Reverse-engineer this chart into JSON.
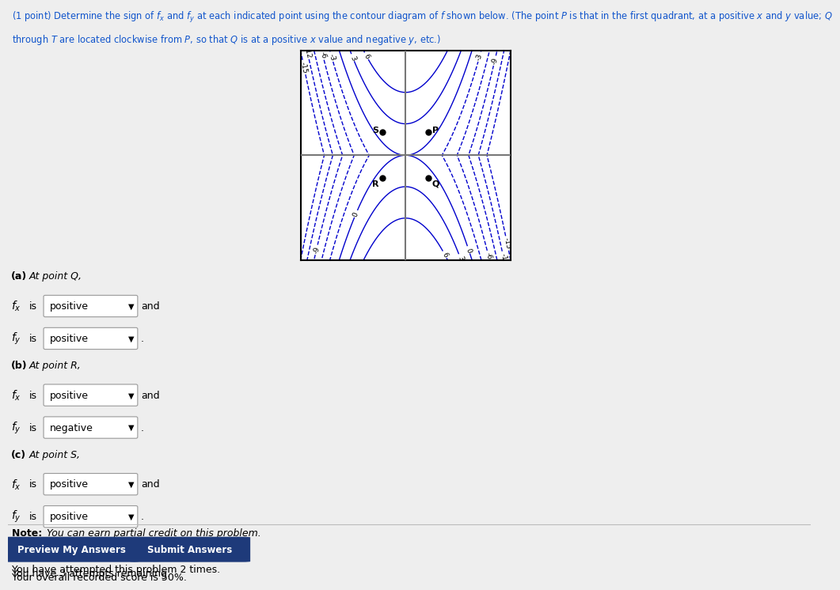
{
  "contour_levels": [
    -15,
    -12,
    -9,
    -6,
    -3,
    0,
    3,
    6
  ],
  "contour_color": "#0000cc",
  "page_bg": "#eeeeee",
  "plot_bg": "#ffffff",
  "points_coords": {
    "P": [
      0.55,
      0.55
    ],
    "Q": [
      0.55,
      -0.55
    ],
    "R": [
      -0.55,
      -0.55
    ],
    "S": [
      -0.55,
      0.55
    ]
  },
  "note_text": "Note: You can earn partial credit on this problem.",
  "note_italic": "You can earn partial credit on this problem.",
  "button1": "Preview My Answers",
  "button2": "Submit Answers",
  "attempt_text1": "You have attempted this problem 2 times.",
  "attempt_text2": "Your overall recorded score is 50%.",
  "attempt_text3": "You have 3 attempts remaining.",
  "header_line1": "(1 point) Determine the sign of f_x and f_y at each indicated point using the contour diagram of f shown below. (The point P is that in the first quadrant, at a positive x and y value; Q",
  "header_line2": "through T are located clockwise from P, so that Q is at a positive x value and negative y, etc.)",
  "parts": [
    {
      "label": "(a) At point Q,",
      "fx": "positive",
      "fy": "positive"
    },
    {
      "label": "(b) At point R,",
      "fx": "positive",
      "fy": "negative"
    },
    {
      "label": "(c) At point S,",
      "fx": "positive",
      "fy": "positive"
    }
  ],
  "plot_xlim": [
    -2.5,
    2.5
  ],
  "plot_ylim": [
    -2.5,
    2.5
  ],
  "func_scale": 2.5,
  "button_color": "#1e3a7a",
  "dropdown_color": "#ffffff",
  "dropdown_edge": "#999999"
}
